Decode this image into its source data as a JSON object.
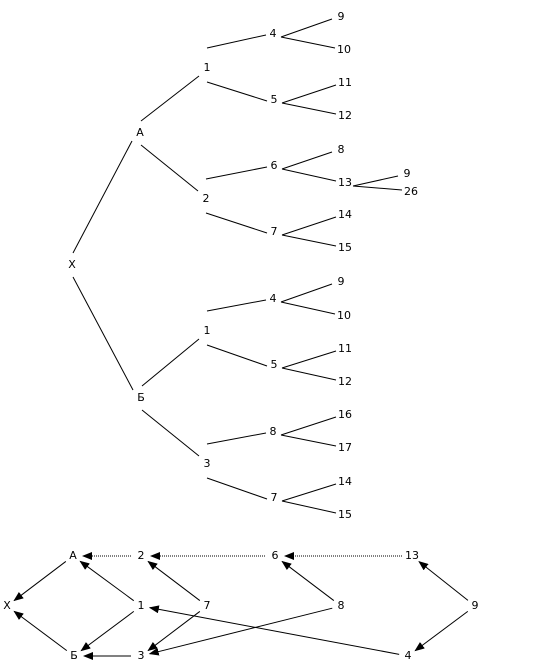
{
  "tree": {
    "nodes": [
      {
        "label": "X"
      },
      {
        "label": "А"
      },
      {
        "label": "Б"
      },
      {
        "label": "1"
      },
      {
        "label": "2"
      },
      {
        "label": "4"
      },
      {
        "label": "5"
      },
      {
        "label": "9"
      },
      {
        "label": "10"
      },
      {
        "label": "11"
      },
      {
        "label": "12"
      },
      {
        "label": "6"
      },
      {
        "label": "7"
      },
      {
        "label": "8"
      },
      {
        "label": "13"
      },
      {
        "label": "9"
      },
      {
        "label": "26"
      },
      {
        "label": "14"
      },
      {
        "label": "15"
      },
      {
        "label": "1"
      },
      {
        "label": "3"
      },
      {
        "label": "4"
      },
      {
        "label": "5"
      },
      {
        "label": "9"
      },
      {
        "label": "10"
      },
      {
        "label": "11"
      },
      {
        "label": "12"
      },
      {
        "label": "8"
      },
      {
        "label": "7"
      },
      {
        "label": "16"
      },
      {
        "label": "17"
      },
      {
        "label": "14"
      },
      {
        "label": "15"
      }
    ]
  },
  "graph": {
    "nodes": [
      {
        "label": "А"
      },
      {
        "label": "2"
      },
      {
        "label": "6"
      },
      {
        "label": "13"
      },
      {
        "label": "X"
      },
      {
        "label": "1"
      },
      {
        "label": "7"
      },
      {
        "label": "8"
      },
      {
        "label": "9"
      },
      {
        "label": "Б"
      },
      {
        "label": "3"
      },
      {
        "label": "4"
      }
    ]
  }
}
